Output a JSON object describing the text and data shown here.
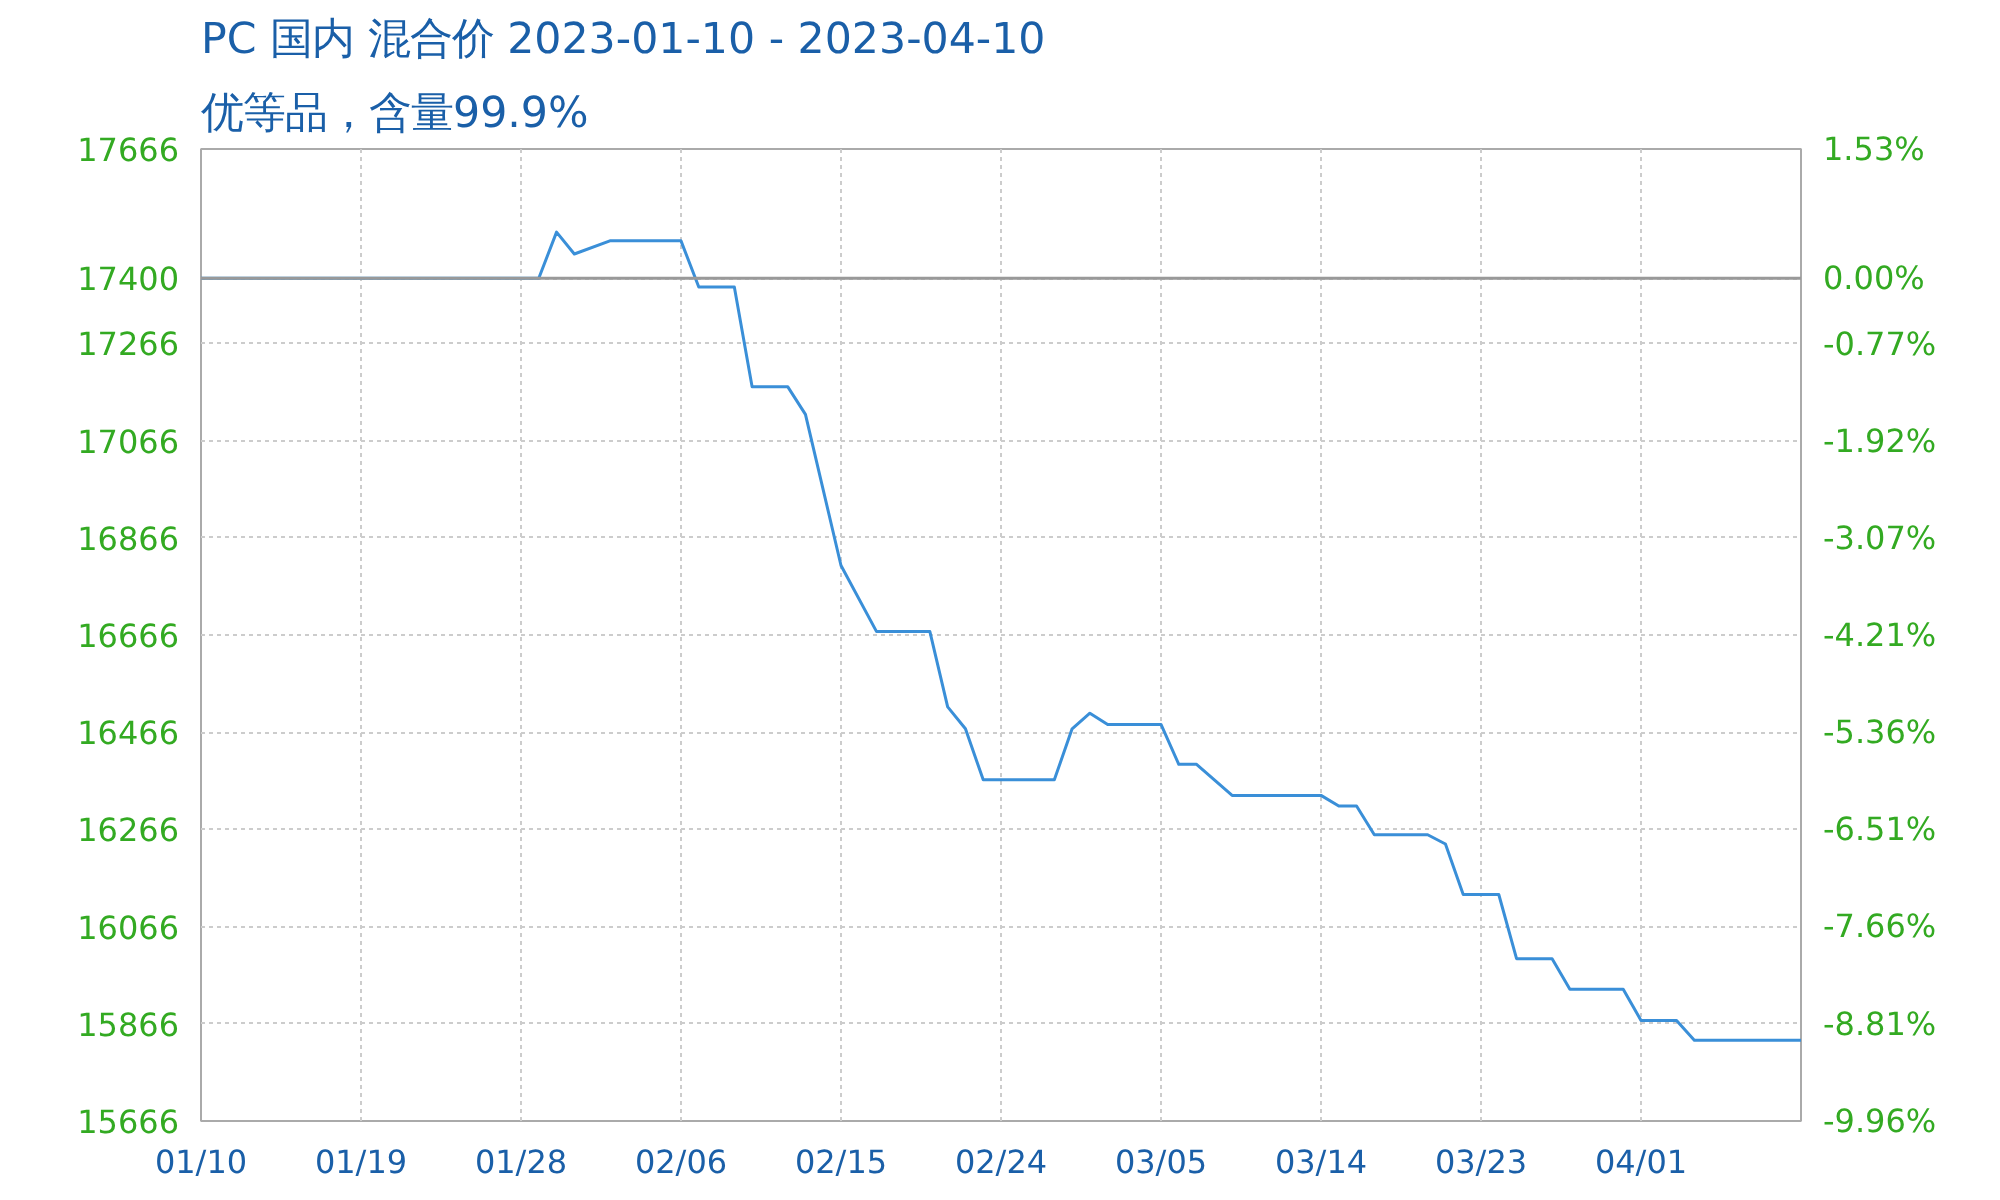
{
  "chart_data": {
    "type": "line",
    "title": "PC 国内 混合价 2023-01-10 - 2023-04-10",
    "subtitle": "优等品，含量99.9%",
    "x": [
      "2023-01-10",
      "2023-01-29",
      "2023-01-30",
      "2023-01-31",
      "2023-02-02",
      "2023-02-06",
      "2023-02-07",
      "2023-02-09",
      "2023-02-10",
      "2023-02-12",
      "2023-02-13",
      "2023-02-15",
      "2023-02-17",
      "2023-02-20",
      "2023-02-21",
      "2023-02-22",
      "2023-02-23",
      "2023-02-27",
      "2023-02-28",
      "2023-03-01",
      "2023-03-02",
      "2023-03-05",
      "2023-03-06",
      "2023-03-07",
      "2023-03-09",
      "2023-03-14",
      "2023-03-15",
      "2023-03-16",
      "2023-03-17",
      "2023-03-20",
      "2023-03-21",
      "2023-03-22",
      "2023-03-24",
      "2023-03-25",
      "2023-03-27",
      "2023-03-28",
      "2023-03-31",
      "2023-04-01",
      "2023-04-03",
      "2023-04-04",
      "2023-04-10"
    ],
    "series": [
      {
        "color": "#3a8fd8",
        "values": [
          17400,
          17400,
          17495,
          17450,
          17477,
          17477,
          17382,
          17382,
          17177,
          17177,
          17120,
          16809,
          16673,
          16673,
          16518,
          16473,
          16368,
          16368,
          16473,
          16505,
          16482,
          16482,
          16400,
          16400,
          16336,
          16336,
          16314,
          16314,
          16255,
          16255,
          16236,
          16132,
          16132,
          16000,
          16000,
          15937,
          15937,
          15873,
          15873,
          15832,
          15832
        ]
      }
    ],
    "xlim": [
      "2023-01-10",
      "2023-04-10"
    ],
    "xticks": [
      {
        "value": "2023-01-10",
        "label": "01/10"
      },
      {
        "value": "2023-01-19",
        "label": "01/19"
      },
      {
        "value": "2023-01-28",
        "label": "01/28"
      },
      {
        "value": "2023-02-06",
        "label": "02/06"
      },
      {
        "value": "2023-02-15",
        "label": "02/15"
      },
      {
        "value": "2023-02-24",
        "label": "02/24"
      },
      {
        "value": "2023-03-05",
        "label": "03/05"
      },
      {
        "value": "2023-03-14",
        "label": "03/14"
      },
      {
        "value": "2023-03-23",
        "label": "03/23"
      },
      {
        "value": "2023-04-01",
        "label": "04/01"
      }
    ],
    "ylim": [
      15666,
      17666
    ],
    "yticks": [
      15666,
      15866,
      16066,
      16266,
      16466,
      16666,
      16866,
      17066,
      17266,
      17400,
      17666
    ],
    "y2lim": [
      -9.96,
      1.53
    ],
    "y2ticks": [
      {
        "value": -9.96,
        "label": "-9.96%"
      },
      {
        "value": -8.81,
        "label": "-8.81%"
      },
      {
        "value": -7.66,
        "label": "-7.66%"
      },
      {
        "value": -6.51,
        "label": "-6.51%"
      },
      {
        "value": -5.36,
        "label": "-5.36%"
      },
      {
        "value": -4.21,
        "label": "-4.21%"
      },
      {
        "value": -3.07,
        "label": "-3.07%"
      },
      {
        "value": -1.92,
        "label": "-1.92%"
      },
      {
        "value": -0.77,
        "label": "-0.77%"
      },
      {
        "value": 0,
        "label": "0.00%"
      },
      {
        "value": 1.53,
        "label": "1.53%"
      }
    ],
    "ref_lines": [
      {
        "axis": "y",
        "value": 17400,
        "color": "#999999"
      }
    ],
    "grid": true,
    "marker": "none",
    "line_style": "solid"
  }
}
